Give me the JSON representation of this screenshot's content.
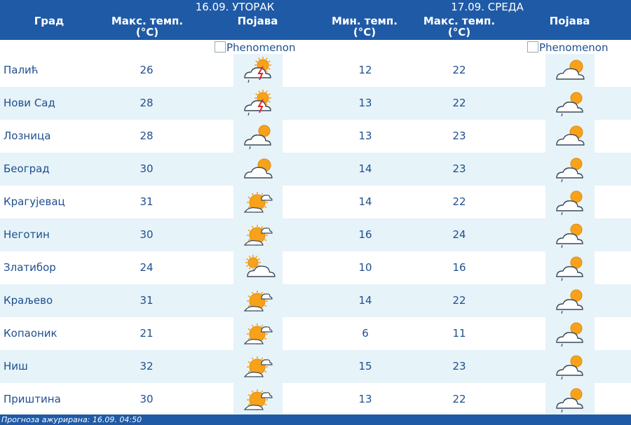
{
  "header": {
    "day1": "16.09. УТОРАК",
    "day2": "17.09. СРЕДА",
    "city_col": "Град",
    "max_temp_line1": "Макс. темп.",
    "max_temp_line2": "(°C)",
    "min_temp_line1": "Мин. темп.",
    "min_temp_line2": "(°C)",
    "phenomenon_col": "Појава",
    "phenomenon_alt": "Phenomenon"
  },
  "rows": [
    {
      "city": "Палић",
      "max1": "26",
      "icon1": "thunderstorm-icon",
      "min2": "12",
      "max2": "22",
      "icon2": "partly-cloudy-icon"
    },
    {
      "city": "Нови Сад",
      "max1": "28",
      "icon1": "thunderstorm-icon",
      "min2": "13",
      "max2": "22",
      "icon2": "cloudy-rain-icon"
    },
    {
      "city": "Лозница",
      "max1": "28",
      "icon1": "cloudy-rain-icon",
      "min2": "13",
      "max2": "23",
      "icon2": "partly-cloudy-icon"
    },
    {
      "city": "Београд",
      "max1": "30",
      "icon1": "partly-cloudy-icon",
      "min2": "14",
      "max2": "23",
      "icon2": "cloudy-rain-icon"
    },
    {
      "city": "Крагујевац",
      "max1": "31",
      "icon1": "sunny-cloud-icon",
      "min2": "14",
      "max2": "22",
      "icon2": "cloudy-rain-icon"
    },
    {
      "city": "Неготин",
      "max1": "30",
      "icon1": "sunny-cloud-icon",
      "min2": "16",
      "max2": "24",
      "icon2": "cloudy-rain-icon"
    },
    {
      "city": "Златибор",
      "max1": "24",
      "icon1": "sun-behind-cloud-icon",
      "min2": "10",
      "max2": "16",
      "icon2": "cloudy-rain-icon"
    },
    {
      "city": "Краљево",
      "max1": "31",
      "icon1": "sunny-cloud-icon",
      "min2": "14",
      "max2": "22",
      "icon2": "cloudy-rain-icon"
    },
    {
      "city": "Копаоник",
      "max1": "21",
      "icon1": "sunny-cloud-icon",
      "min2": "6",
      "max2": "11",
      "icon2": "cloudy-rain-icon"
    },
    {
      "city": "Ниш",
      "max1": "32",
      "icon1": "sunny-cloud-icon",
      "min2": "15",
      "max2": "23",
      "icon2": "cloudy-rain-icon"
    },
    {
      "city": "Приштина",
      "max1": "30",
      "icon1": "sunny-cloud-icon",
      "min2": "13",
      "max2": "22",
      "icon2": "cloudy-rain-icon"
    }
  ],
  "footer": {
    "text": "Прогноза ажурирана:  16.09. 04:50"
  },
  "colors": {
    "header_bg": "#1f5aa6",
    "row_alt_bg": "#e6f3f8",
    "text": "#1f4f8f",
    "sun": "#f7a21a",
    "lightning": "#d8282d"
  }
}
